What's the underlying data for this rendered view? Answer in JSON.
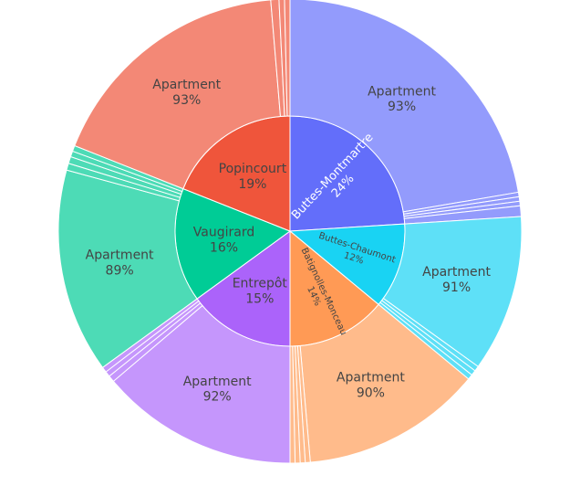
{
  "chart_data": {
    "type": "sunburst",
    "start_angle_deg": 90,
    "direction": "clockwise",
    "separator_color": "#ffffff",
    "nodes": [
      {
        "label": "Buttes-Montmartre",
        "percent_label": "24%",
        "share": 0.24,
        "color": "#636efa",
        "children": [
          {
            "label": "Apartment",
            "percent_label": "93%",
            "share": 0.93,
            "color": "#939bfc"
          },
          {
            "label": "",
            "share": 0.013,
            "color": "#939bfc"
          },
          {
            "label": "",
            "share": 0.013,
            "color": "#939bfc"
          },
          {
            "label": "",
            "share": 0.013,
            "color": "#939bfc"
          },
          {
            "label": "",
            "share": 0.031,
            "color": "#939bfc"
          }
        ]
      },
      {
        "label": "Buttes-Chaumont",
        "percent_label": "12%",
        "share": 0.12,
        "color": "#19d3f3",
        "children": [
          {
            "label": "Apartment",
            "percent_label": "91%",
            "share": 0.91,
            "color": "#5ee0f7"
          },
          {
            "label": "",
            "share": 0.03,
            "color": "#5ee0f7"
          },
          {
            "label": "",
            "share": 0.03,
            "color": "#5ee0f7"
          },
          {
            "label": "",
            "share": 0.03,
            "color": "#5ee0f7"
          }
        ]
      },
      {
        "label": "Batignolles-Monceau",
        "percent_label": "14%",
        "share": 0.14,
        "color": "#ff9a55",
        "children": [
          {
            "label": "Apartment",
            "percent_label": "90%",
            "share": 0.9,
            "color": "#ffbb8b"
          },
          {
            "label": "",
            "share": 0.025,
            "color": "#ffbb8b"
          },
          {
            "label": "",
            "share": 0.025,
            "color": "#ffbb8b"
          },
          {
            "label": "",
            "share": 0.025,
            "color": "#ffbb8b"
          },
          {
            "label": "",
            "share": 0.025,
            "color": "#ffbb8b"
          }
        ]
      },
      {
        "label": "Entrepôt",
        "percent_label": "15%",
        "share": 0.15,
        "color": "#ab63fa",
        "children": [
          {
            "label": "Apartment",
            "percent_label": "92%",
            "share": 0.92,
            "color": "#c596fc"
          },
          {
            "label": "",
            "share": 0.03,
            "color": "#c596fc"
          },
          {
            "label": "",
            "share": 0.025,
            "color": "#c596fc"
          },
          {
            "label": "",
            "share": 0.025,
            "color": "#c596fc"
          }
        ]
      },
      {
        "label": "Vaugirard",
        "percent_label": "16%",
        "share": 0.16,
        "color": "#00cc96",
        "children": [
          {
            "label": "Apartment",
            "percent_label": "89%",
            "share": 0.89,
            "color": "#4ddbb6"
          },
          {
            "label": "",
            "share": 0.03,
            "color": "#4ddbb6"
          },
          {
            "label": "",
            "share": 0.03,
            "color": "#4ddbb6"
          },
          {
            "label": "",
            "share": 0.025,
            "color": "#4ddbb6"
          },
          {
            "label": "",
            "share": 0.025,
            "color": "#4ddbb6"
          }
        ]
      },
      {
        "label": "Popincourt",
        "percent_label": "19%",
        "share": 0.19,
        "color": "#ef553b",
        "children": [
          {
            "label": "Apartment",
            "percent_label": "93%",
            "share": 0.93,
            "color": "#f38876"
          },
          {
            "label": "",
            "share": 0.03,
            "color": "#f38876"
          },
          {
            "label": "",
            "share": 0.02,
            "color": "#f38876"
          },
          {
            "label": "",
            "share": 0.02,
            "color": "#f38876"
          }
        ]
      }
    ]
  }
}
